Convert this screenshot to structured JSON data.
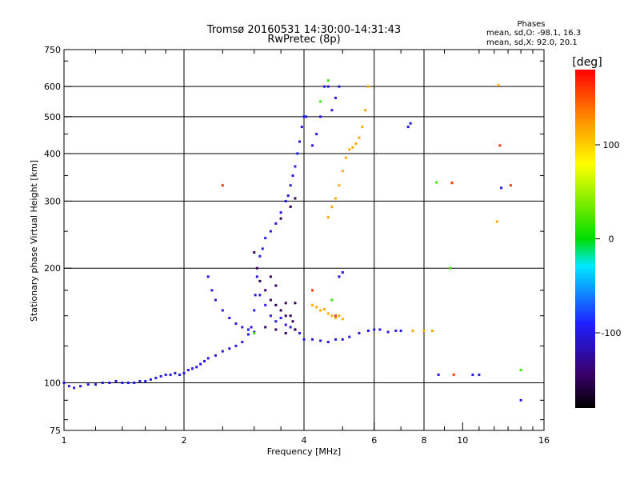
{
  "chart_data": {
    "type": "scatter",
    "title": "Tromsø 20160531 14:30:00-14:31:43",
    "subtitle": "RwPretec (8p)",
    "xlabel": "Frequency [MHz]",
    "ylabel": "Stationary phase Virtual Height [km]",
    "x_scale": "log",
    "y_scale": "log",
    "xlim": [
      1,
      16
    ],
    "ylim": [
      75,
      750
    ],
    "x_ticks": [
      1,
      2,
      4,
      6,
      8,
      10,
      16
    ],
    "x_ticklabels": [
      "1",
      "2",
      "4",
      "6",
      "8",
      "10",
      "16"
    ],
    "y_ticks": [
      75,
      100,
      200,
      300,
      400,
      500,
      600,
      750
    ],
    "y_ticklabels": [
      "75",
      "100",
      "200",
      "300",
      "400",
      "500",
      "600",
      "750"
    ],
    "grid": true,
    "phase_stats": {
      "heading": "Phases",
      "line_o": "mean, sd,O: -98.1, 16.3",
      "line_x": "mean, sd,X:  92.0, 20.1"
    },
    "colorbar": {
      "label": "[deg]",
      "range": [
        -180,
        180
      ],
      "ticks": [
        100,
        0,
        -100
      ],
      "tick_labels": [
        "100",
        "0",
        "-100"
      ]
    },
    "series": [
      {
        "phase": -100,
        "points": [
          [
            1.0,
            100
          ],
          [
            1.03,
            98
          ],
          [
            1.06,
            97
          ],
          [
            1.1,
            98
          ],
          [
            1.15,
            99
          ],
          [
            1.2,
            99
          ],
          [
            1.25,
            100
          ],
          [
            1.3,
            100
          ],
          [
            1.35,
            101
          ],
          [
            1.4,
            100
          ],
          [
            1.45,
            100
          ],
          [
            1.5,
            100
          ],
          [
            1.55,
            101
          ],
          [
            1.6,
            101
          ],
          [
            1.65,
            102
          ],
          [
            1.7,
            103
          ],
          [
            1.75,
            104
          ],
          [
            1.8,
            105
          ],
          [
            1.85,
            105
          ],
          [
            1.9,
            106
          ],
          [
            1.95,
            105
          ],
          [
            2.0,
            106
          ],
          [
            2.05,
            108
          ],
          [
            2.1,
            109
          ],
          [
            2.15,
            110
          ],
          [
            2.2,
            112
          ],
          [
            2.25,
            114
          ],
          [
            2.3,
            116
          ],
          [
            2.4,
            118
          ],
          [
            2.5,
            121
          ],
          [
            2.6,
            123
          ],
          [
            2.7,
            125
          ],
          [
            2.8,
            128
          ],
          [
            2.9,
            134
          ],
          [
            2.95,
            140
          ],
          [
            3.0,
            155
          ],
          [
            3.02,
            170
          ],
          [
            3.05,
            190
          ],
          [
            3.1,
            215
          ],
          [
            3.15,
            225
          ],
          [
            3.2,
            240
          ],
          [
            3.3,
            250
          ],
          [
            3.4,
            262
          ],
          [
            3.5,
            280
          ],
          [
            3.6,
            300
          ],
          [
            3.65,
            310
          ],
          [
            3.7,
            330
          ],
          [
            3.75,
            350
          ],
          [
            3.8,
            370
          ],
          [
            3.85,
            400
          ],
          [
            3.9,
            430
          ],
          [
            3.95,
            470
          ],
          [
            4.0,
            500
          ],
          [
            4.05,
            500
          ],
          [
            4.2,
            420
          ],
          [
            4.3,
            450
          ],
          [
            4.4,
            500
          ],
          [
            4.5,
            600
          ],
          [
            4.6,
            600
          ],
          [
            4.7,
            520
          ],
          [
            4.8,
            560
          ],
          [
            4.9,
            600
          ],
          [
            2.3,
            190
          ],
          [
            2.35,
            175
          ],
          [
            2.4,
            165
          ],
          [
            2.5,
            155
          ],
          [
            2.6,
            148
          ],
          [
            2.7,
            143
          ],
          [
            2.8,
            140
          ],
          [
            2.9,
            138
          ],
          [
            3.0,
            136
          ],
          [
            3.1,
            170
          ],
          [
            3.2,
            160
          ],
          [
            3.3,
            150
          ],
          [
            3.4,
            145
          ],
          [
            3.5,
            148
          ],
          [
            3.6,
            142
          ],
          [
            3.7,
            140
          ],
          [
            3.8,
            138
          ],
          [
            3.9,
            135
          ],
          [
            4.0,
            130
          ],
          [
            4.2,
            130
          ],
          [
            4.4,
            129
          ],
          [
            4.6,
            128
          ],
          [
            4.8,
            130
          ],
          [
            5.0,
            130
          ],
          [
            5.2,
            132
          ],
          [
            5.5,
            135
          ],
          [
            5.8,
            137
          ],
          [
            6.0,
            138
          ],
          [
            6.2,
            138
          ],
          [
            6.5,
            136
          ],
          [
            6.8,
            137
          ],
          [
            7.0,
            137
          ],
          [
            4.9,
            190
          ],
          [
            5.0,
            195
          ],
          [
            7.3,
            470
          ],
          [
            7.4,
            480
          ],
          [
            8.7,
            105
          ],
          [
            11.0,
            105
          ],
          [
            10.6,
            105
          ],
          [
            14.0,
            90
          ],
          [
            12.5,
            325
          ]
        ]
      },
      {
        "phase": -150,
        "points": [
          [
            3.0,
            220
          ],
          [
            3.05,
            200
          ],
          [
            3.1,
            185
          ],
          [
            3.2,
            175
          ],
          [
            3.3,
            165
          ],
          [
            3.4,
            160
          ],
          [
            3.5,
            155
          ],
          [
            3.6,
            150
          ],
          [
            3.7,
            150
          ],
          [
            3.75,
            145
          ],
          [
            3.3,
            190
          ],
          [
            3.4,
            180
          ],
          [
            3.2,
            140
          ],
          [
            3.4,
            138
          ],
          [
            3.6,
            135
          ],
          [
            3.8,
            138
          ],
          [
            3.6,
            162
          ],
          [
            3.8,
            162
          ],
          [
            3.5,
            270
          ],
          [
            3.7,
            290
          ],
          [
            3.8,
            305
          ]
        ]
      },
      {
        "phase": 115,
        "points": [
          [
            4.6,
            272
          ],
          [
            4.7,
            290
          ],
          [
            4.8,
            305
          ],
          [
            4.9,
            330
          ],
          [
            5.0,
            360
          ],
          [
            5.1,
            390
          ],
          [
            5.2,
            410
          ],
          [
            5.3,
            415
          ],
          [
            5.4,
            425
          ],
          [
            5.5,
            440
          ],
          [
            5.6,
            470
          ],
          [
            5.7,
            520
          ],
          [
            5.8,
            600
          ],
          [
            4.2,
            160
          ],
          [
            4.3,
            158
          ],
          [
            4.4,
            155
          ],
          [
            4.5,
            156
          ],
          [
            4.6,
            152
          ],
          [
            4.7,
            150
          ],
          [
            4.8,
            148
          ],
          [
            4.9,
            150
          ],
          [
            5.0,
            147
          ],
          [
            7.5,
            137
          ],
          [
            8.0,
            137
          ],
          [
            8.4,
            137
          ],
          [
            12.2,
            265
          ],
          [
            12.3,
            605
          ]
        ]
      },
      {
        "phase": 20,
        "points": [
          [
            4.4,
            548
          ],
          [
            4.6,
            622
          ],
          [
            4.7,
            165
          ],
          [
            3.0,
            135
          ],
          [
            9.3,
            200
          ],
          [
            14.0,
            108
          ],
          [
            8.6,
            336
          ]
        ]
      },
      {
        "phase": 160,
        "points": [
          [
            4.8,
            150
          ],
          [
            4.2,
            175
          ],
          [
            13.2,
            330
          ],
          [
            2.5,
            330
          ],
          [
            9.4,
            335
          ],
          [
            12.4,
            420
          ],
          [
            9.5,
            105
          ]
        ]
      }
    ]
  }
}
